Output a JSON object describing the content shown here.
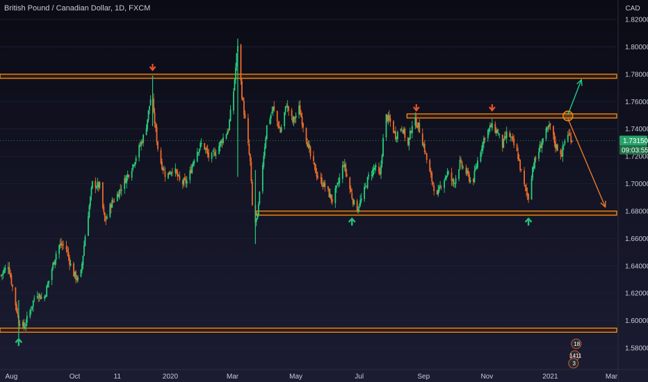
{
  "chart_data": {
    "type": "candlestick",
    "title": "British Pound / Canadian Dollar, 1D, FXCM",
    "y_axis_unit": "CAD",
    "ylim": [
      1.57,
      1.83
    ],
    "y_ticks": [
      "1.58000",
      "1.60000",
      "1.62000",
      "1.64000",
      "1.66000",
      "1.68000",
      "1.70000",
      "1.72000",
      "1.74000",
      "1.76000",
      "1.78000",
      "1.80000",
      "1.82000"
    ],
    "x_range": [
      "2019-07-21",
      "2021-03-06"
    ],
    "x_ticks": [
      {
        "label": "Aug",
        "date": "2019-08-01"
      },
      {
        "label": "Oct",
        "date": "2019-10-01"
      },
      {
        "label": "11",
        "date": "2019-11-11"
      },
      {
        "label": "2020",
        "date": "2020-01-01"
      },
      {
        "label": "Mar",
        "date": "2020-03-01"
      },
      {
        "label": "May",
        "date": "2020-05-01"
      },
      {
        "label": "Jul",
        "date": "2020-07-01"
      },
      {
        "label": "Sep",
        "date": "2020-09-01"
      },
      {
        "label": "Nov",
        "date": "2020-11-01"
      },
      {
        "label": "2021",
        "date": "2021-01-01"
      },
      {
        "label": "Mar",
        "date": "2021-03-01"
      }
    ],
    "price_path": [
      [
        "2019-07-22",
        1.633
      ],
      [
        "2019-07-29",
        1.641
      ],
      [
        "2019-08-03",
        1.62
      ],
      [
        "2019-08-08",
        1.6
      ],
      [
        "2019-08-13",
        1.595
      ],
      [
        "2019-08-18",
        1.605
      ],
      [
        "2019-08-25",
        1.621
      ],
      [
        "2019-09-01",
        1.615
      ],
      [
        "2019-09-08",
        1.635
      ],
      [
        "2019-09-15",
        1.655
      ],
      [
        "2019-09-22",
        1.655
      ],
      [
        "2019-09-29",
        1.635
      ],
      [
        "2019-10-06",
        1.628
      ],
      [
        "2019-10-11",
        1.662
      ],
      [
        "2019-10-18",
        1.7
      ],
      [
        "2019-10-25",
        1.698
      ],
      [
        "2019-10-30",
        1.672
      ],
      [
        "2019-11-05",
        1.685
      ],
      [
        "2019-11-11",
        1.692
      ],
      [
        "2019-11-18",
        1.702
      ],
      [
        "2019-11-25",
        1.712
      ],
      [
        "2019-12-03",
        1.728
      ],
      [
        "2019-12-08",
        1.738
      ],
      [
        "2019-12-13",
        1.762
      ],
      [
        "2019-12-17",
        1.745
      ],
      [
        "2019-12-21",
        1.72
      ],
      [
        "2019-12-28",
        1.705
      ],
      [
        "2020-01-04",
        1.712
      ],
      [
        "2020-01-11",
        1.7
      ],
      [
        "2020-01-18",
        1.702
      ],
      [
        "2020-01-25",
        1.722
      ],
      [
        "2020-02-01",
        1.73
      ],
      [
        "2020-02-08",
        1.718
      ],
      [
        "2020-02-15",
        1.725
      ],
      [
        "2020-02-20",
        1.732
      ],
      [
        "2020-02-26",
        1.74
      ],
      [
        "2020-03-02",
        1.768
      ],
      [
        "2020-03-06",
        1.802
      ],
      [
        "2020-03-10",
        1.765
      ],
      [
        "2020-03-14",
        1.74
      ],
      [
        "2020-03-18",
        1.715
      ],
      [
        "2020-03-21",
        1.668
      ],
      [
        "2020-03-25",
        1.675
      ],
      [
        "2020-03-29",
        1.708
      ],
      [
        "2020-04-03",
        1.742
      ],
      [
        "2020-04-09",
        1.755
      ],
      [
        "2020-04-16",
        1.738
      ],
      [
        "2020-04-22",
        1.758
      ],
      [
        "2020-04-28",
        1.745
      ],
      [
        "2020-05-04",
        1.755
      ],
      [
        "2020-05-09",
        1.74
      ],
      [
        "2020-05-15",
        1.72
      ],
      [
        "2020-05-22",
        1.705
      ],
      [
        "2020-05-29",
        1.698
      ],
      [
        "2020-06-05",
        1.688
      ],
      [
        "2020-06-10",
        1.698
      ],
      [
        "2020-06-16",
        1.715
      ],
      [
        "2020-06-22",
        1.696
      ],
      [
        "2020-06-28",
        1.68
      ],
      [
        "2020-07-04",
        1.69
      ],
      [
        "2020-07-10",
        1.705
      ],
      [
        "2020-07-16",
        1.712
      ],
      [
        "2020-07-21",
        1.705
      ],
      [
        "2020-07-26",
        1.75
      ],
      [
        "2020-07-31",
        1.745
      ],
      [
        "2020-08-05",
        1.735
      ],
      [
        "2020-08-11",
        1.742
      ],
      [
        "2020-08-17",
        1.728
      ],
      [
        "2020-08-22",
        1.748
      ],
      [
        "2020-08-27",
        1.742
      ],
      [
        "2020-09-02",
        1.725
      ],
      [
        "2020-09-06",
        1.71
      ],
      [
        "2020-09-10",
        1.7
      ],
      [
        "2020-09-14",
        1.69
      ],
      [
        "2020-09-18",
        1.7
      ],
      [
        "2020-09-24",
        1.708
      ],
      [
        "2020-09-30",
        1.7
      ],
      [
        "2020-10-06",
        1.715
      ],
      [
        "2020-10-12",
        1.708
      ],
      [
        "2020-10-18",
        1.7
      ],
      [
        "2020-10-24",
        1.72
      ],
      [
        "2020-10-30",
        1.735
      ],
      [
        "2020-11-05",
        1.742
      ],
      [
        "2020-11-11",
        1.738
      ],
      [
        "2020-11-16",
        1.728
      ],
      [
        "2020-11-21",
        1.738
      ],
      [
        "2020-11-26",
        1.73
      ],
      [
        "2020-12-01",
        1.72
      ],
      [
        "2020-12-06",
        1.7
      ],
      [
        "2020-12-11",
        1.69
      ],
      [
        "2020-12-15",
        1.712
      ],
      [
        "2020-12-20",
        1.722
      ],
      [
        "2020-12-26",
        1.735
      ],
      [
        "2021-01-01",
        1.742
      ],
      [
        "2021-01-06",
        1.728
      ],
      [
        "2021-01-12",
        1.722
      ],
      [
        "2021-01-17",
        1.738
      ],
      [
        "2021-01-22",
        1.732
      ]
    ],
    "current_price": "1.73150",
    "countdown": "09:03:55",
    "horizontal_zones": [
      {
        "from_date": "2019-07-21",
        "to_date": "2021-03-06",
        "low": 1.777,
        "high": 1.78
      },
      {
        "from_date": "2020-08-16",
        "to_date": "2021-03-06",
        "low": 1.748,
        "high": 1.751
      },
      {
        "from_date": "2020-03-24",
        "to_date": "2021-03-06",
        "low": 1.677,
        "high": 1.68
      },
      {
        "from_date": "2019-07-21",
        "to_date": "2021-03-06",
        "low": 1.5915,
        "high": 1.5945
      }
    ],
    "arrows_down": [
      {
        "date": "2019-12-15",
        "price": 1.783
      },
      {
        "date": "2020-08-25",
        "price": 1.7535
      },
      {
        "date": "2020-11-06",
        "price": 1.7535
      }
    ],
    "arrows_up": [
      {
        "date": "2019-08-08",
        "price": 1.5865
      },
      {
        "date": "2020-06-24",
        "price": 1.6745
      },
      {
        "date": "2020-12-11",
        "price": 1.6745
      }
    ],
    "scenario_arrows": [
      {
        "color": "#1fcf86",
        "from": [
          "2021-01-18",
          1.7505
        ],
        "to": [
          "2021-01-31",
          1.776
        ]
      },
      {
        "color": "#ef7a27",
        "from": [
          "2021-01-18",
          1.7475
        ],
        "to": [
          "2021-02-23",
          1.683
        ]
      }
    ],
    "marker_circle": {
      "date": "2021-01-18",
      "price": 1.7495
    },
    "news_badges": [
      "18",
      "1411",
      "3"
    ],
    "colors": {
      "bull": "#26d07c",
      "bear": "#ef6c2a",
      "zone_fill": "#3a1d10",
      "zone_border": "#f7931a",
      "up_arrow": "#23c17a",
      "down_arrow": "#e8542a",
      "price_tag": "#26a269",
      "countdown_tag": "#1f6f45",
      "background": "#0f0f1c"
    }
  }
}
